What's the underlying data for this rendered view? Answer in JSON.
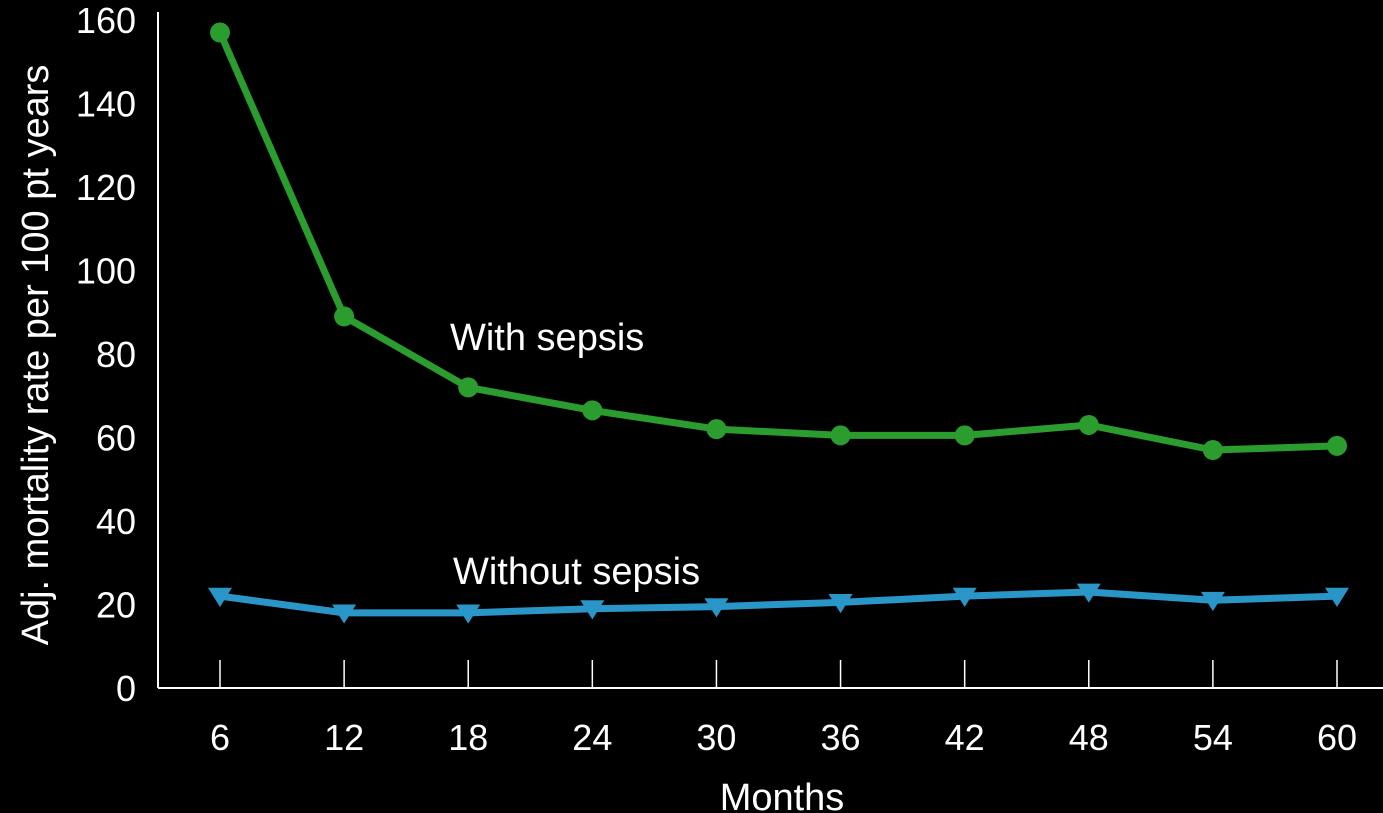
{
  "chart_data": {
    "type": "line",
    "title": "",
    "xlabel": "Months",
    "ylabel": "Adj. mortality rate per 100 pt years",
    "x": [
      6,
      12,
      18,
      24,
      30,
      36,
      42,
      48,
      54,
      60
    ],
    "ylim": [
      0,
      160
    ],
    "yticks": [
      0,
      20,
      40,
      60,
      80,
      100,
      120,
      140,
      160
    ],
    "grid": false,
    "legend": "none",
    "series": [
      {
        "name": "With sepsis",
        "color": "#2a9d2e",
        "marker": "circle",
        "values": [
          157,
          89,
          72,
          66.5,
          62,
          60.5,
          60.5,
          63,
          57,
          58
        ]
      },
      {
        "name": "Without sepsis",
        "color": "#2a96c8",
        "marker": "triangle-down",
        "values": [
          22,
          18,
          18,
          19,
          19.5,
          20.5,
          22,
          23,
          21,
          22
        ]
      }
    ]
  }
}
